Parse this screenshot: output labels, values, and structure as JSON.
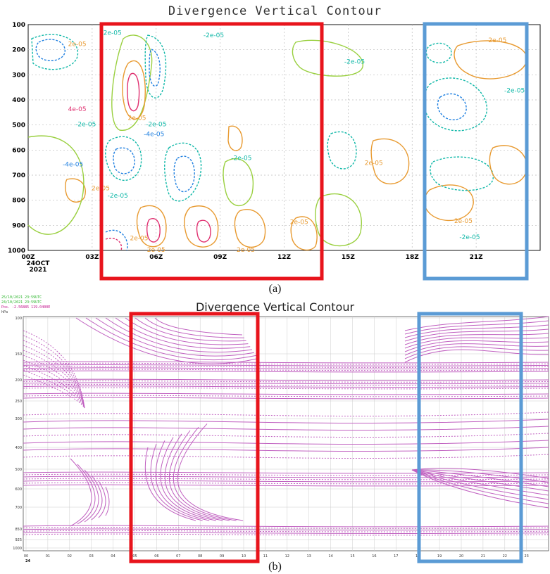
{
  "chart_data": [
    {
      "type": "contour",
      "title": "Divergence Vertical Contour",
      "y_ticks": [
        "100",
        "200",
        "300",
        "400",
        "500",
        "600",
        "700",
        "800",
        "900",
        "1000"
      ],
      "x_ticks": [
        "00Z",
        "03Z",
        "06Z",
        "09Z",
        "12Z",
        "15Z",
        "18Z",
        "21Z"
      ],
      "x_date_label": [
        "24OCT",
        "2021"
      ],
      "caption": "(a)",
      "contour_labels": [
        {
          "text": "-2e-05",
          "col": "#10b8a8",
          "x": 3.9,
          "p": 140
        },
        {
          "text": "2e-05",
          "col": "#e89a30",
          "x": 2.3,
          "p": 185
        },
        {
          "text": "-2e-05",
          "col": "#10b8a8",
          "x": 8.7,
          "p": 150
        },
        {
          "text": "-2e-05",
          "col": "#10b8a8",
          "x": 15.3,
          "p": 255
        },
        {
          "text": "2e-05",
          "col": "#e89a30",
          "x": 22.0,
          "p": 170
        },
        {
          "text": "-2e-05",
          "col": "#10b8a8",
          "x": 22.8,
          "p": 370
        },
        {
          "text": "4e-05",
          "col": "#e03070",
          "x": 2.3,
          "p": 445
        },
        {
          "text": "2e-05",
          "col": "#e89a30",
          "x": 5.1,
          "p": 480
        },
        {
          "text": "-2e-05",
          "col": "#10b8a8",
          "x": 2.7,
          "p": 505
        },
        {
          "text": "-2e-05",
          "col": "#10b8a8",
          "x": 6.0,
          "p": 505
        },
        {
          "text": "-4e-05",
          "col": "#2080e0",
          "x": 5.9,
          "p": 545
        },
        {
          "text": "-4e-05",
          "col": "#2080e0",
          "x": 2.1,
          "p": 665
        },
        {
          "text": "-2e-05",
          "col": "#10b8a8",
          "x": 10.0,
          "p": 640
        },
        {
          "text": "2e-05",
          "col": "#e89a30",
          "x": 16.2,
          "p": 660
        },
        {
          "text": "2e-05",
          "col": "#e89a30",
          "x": 3.4,
          "p": 760
        },
        {
          "text": "-2e-05",
          "col": "#10b8a8",
          "x": 4.2,
          "p": 790
        },
        {
          "text": "2e-05",
          "col": "#e89a30",
          "x": 12.7,
          "p": 895
        },
        {
          "text": "2e-05",
          "col": "#e89a30",
          "x": 20.4,
          "p": 890
        },
        {
          "text": "-2e-05",
          "col": "#10b8a8",
          "x": 20.7,
          "p": 955
        },
        {
          "text": "2e-05",
          "col": "#e89a30",
          "x": 5.2,
          "p": 960
        },
        {
          "text": "2e-05",
          "col": "#e89a30",
          "x": 6.0,
          "p": 1005
        },
        {
          "text": "2e-05",
          "col": "#e89a30",
          "x": 10.2,
          "p": 1005
        }
      ]
    },
    {
      "type": "contour",
      "title": "Divergence Vertical Contour",
      "caption": "(b)",
      "header_lines": [
        "25/10/2021 23:59UTC",
        "24/10/2021 23:59UTC",
        "Pos. -2.56885 119.0400E"
      ],
      "y_unit": "hPa",
      "y_ticks": [
        "100",
        "150",
        "200",
        "250",
        "300",
        "400",
        "500",
        "600",
        "700",
        "850",
        "925",
        "1000"
      ],
      "x_ticks": [
        "00",
        "01",
        "02",
        "03",
        "04",
        "05",
        "06",
        "07",
        "08",
        "09",
        "10",
        "11",
        "12",
        "13",
        "14",
        "15",
        "16",
        "17",
        "18",
        "19",
        "20",
        "21",
        "22",
        "23"
      ],
      "x_start_label": "24"
    }
  ],
  "highlight_colors": {
    "red": "#e8141c",
    "blue": "#5b9bd5"
  }
}
